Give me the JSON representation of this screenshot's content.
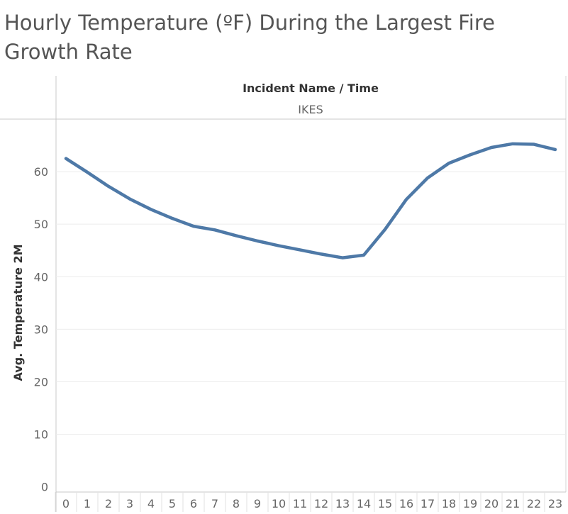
{
  "chart_data": {
    "type": "line",
    "title": "Hourly Temperature (ºF) During the Largest Fire Growth Rate",
    "header": "Incident Name / Time",
    "pane": "IKES",
    "ylabel": "Avg. Temperature 2M",
    "xlabel": "",
    "x": [
      0,
      1,
      2,
      3,
      4,
      5,
      6,
      7,
      8,
      9,
      10,
      11,
      12,
      13,
      14,
      15,
      16,
      17,
      18,
      19,
      20,
      21,
      22,
      23
    ],
    "yticks": [
      0,
      10,
      20,
      30,
      40,
      50,
      60
    ],
    "ylim": [
      -1,
      70
    ],
    "grid": true,
    "series": [
      {
        "name": "",
        "color": "#4e79a7",
        "values": [
          62.5,
          59.9,
          57.2,
          54.8,
          52.8,
          51.1,
          49.6,
          48.9,
          47.8,
          46.8,
          45.9,
          45.1,
          44.3,
          43.6,
          44.1,
          49.0,
          54.7,
          58.8,
          61.6,
          63.2,
          64.6,
          65.3,
          65.2,
          64.2
        ]
      }
    ]
  }
}
